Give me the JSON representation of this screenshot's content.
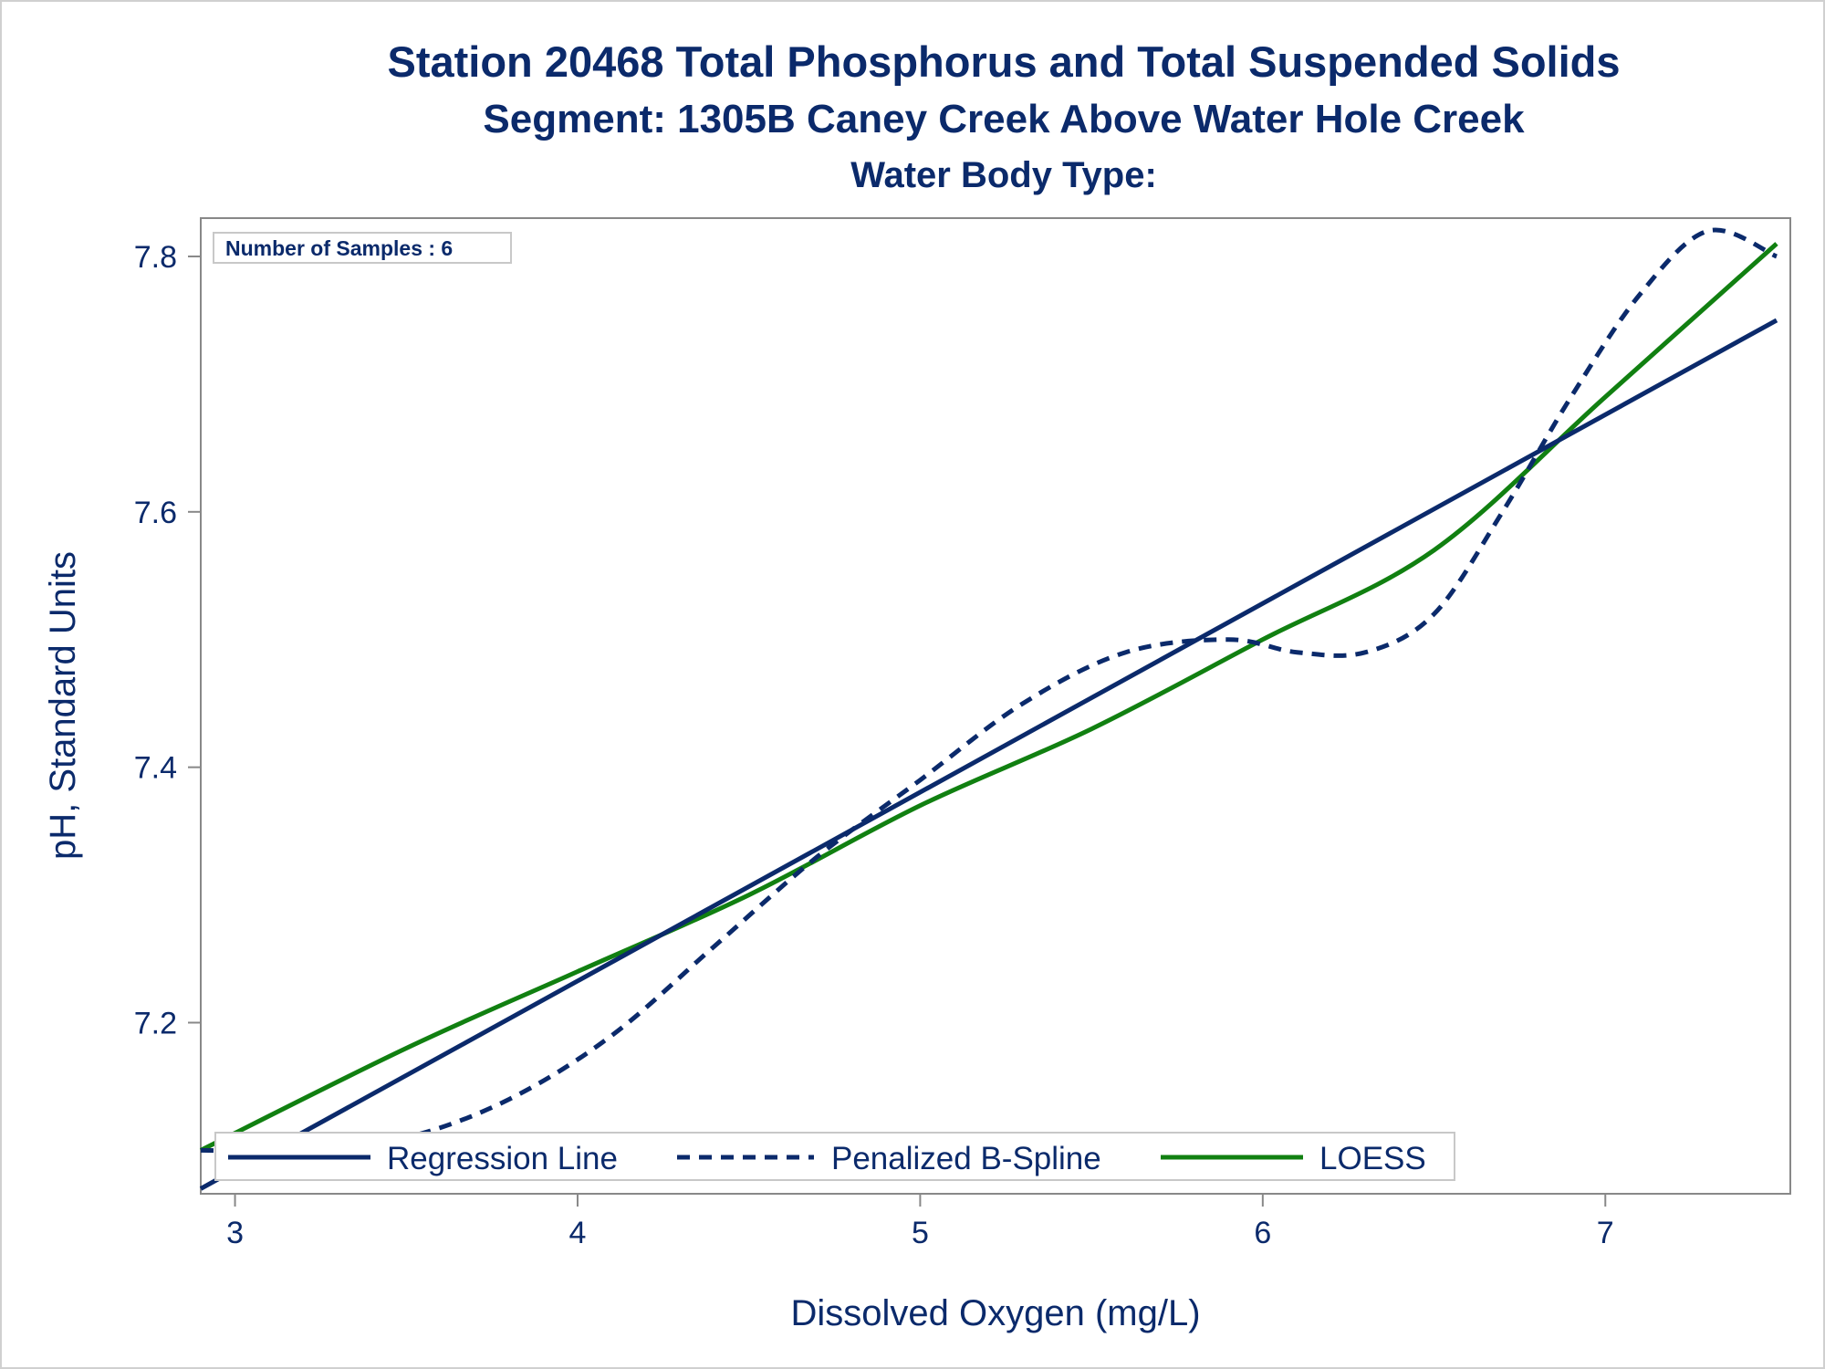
{
  "titles": {
    "line1": "Station 20468  Total Phosphorus and Total Suspended Solids",
    "line2": "Segment: 1305B  Caney Creek Above Water Hole Creek",
    "line3": "Water Body Type:"
  },
  "annotation": "Number of Samples : 6",
  "colors": {
    "text": "#0b2a6b",
    "regression": "#0b2a6b",
    "spline": "#0b2a6b",
    "loess": "#118011",
    "frame": "#888888"
  },
  "chart_data": {
    "type": "line",
    "title": "Station 20468  Total Phosphorus and Total Suspended Solids",
    "xlabel": "Dissolved Oxygen (mg/L)",
    "ylabel": "pH, Standard Units",
    "xlim": [
      2.9,
      7.54
    ],
    "ylim": [
      7.066,
      7.83
    ],
    "xticks": [
      3,
      4,
      5,
      6,
      7
    ],
    "xtick_labels": [
      "3",
      "4",
      "5",
      "6",
      "7"
    ],
    "yticks": [
      7.2,
      7.4,
      7.6,
      7.8
    ],
    "ytick_labels": [
      "7.2",
      "7.4",
      "7.6",
      "7.8"
    ],
    "grid": false,
    "legend": "bottom-left, inside",
    "series": [
      {
        "name": "Regression Line",
        "style": "solid",
        "color": "#0b2a6b",
        "x": [
          2.9,
          7.5
        ],
        "y": [
          7.07,
          7.75
        ]
      },
      {
        "name": "Penalized B-Spline",
        "style": "dashed",
        "color": "#0b2a6b",
        "x": [
          2.9,
          3.2,
          3.5,
          3.8,
          4.1,
          4.4,
          4.7,
          5.0,
          5.3,
          5.6,
          5.9,
          6.1,
          6.3,
          6.5,
          6.7,
          6.9,
          7.1,
          7.3,
          7.5
        ],
        "y": [
          7.1,
          7.1,
          7.11,
          7.14,
          7.19,
          7.26,
          7.33,
          7.39,
          7.45,
          7.49,
          7.5,
          7.49,
          7.49,
          7.52,
          7.6,
          7.69,
          7.77,
          7.82,
          7.8
        ]
      },
      {
        "name": "LOESS",
        "style": "solid",
        "color": "#118011",
        "x": [
          2.9,
          3.5,
          4.0,
          4.5,
          5.0,
          5.5,
          6.0,
          6.5,
          7.0,
          7.5
        ],
        "y": [
          7.1,
          7.18,
          7.24,
          7.3,
          7.37,
          7.43,
          7.5,
          7.57,
          7.69,
          7.81
        ]
      }
    ]
  }
}
